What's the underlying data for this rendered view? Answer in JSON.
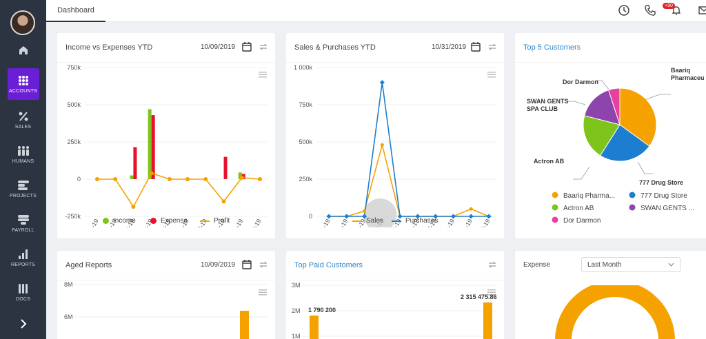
{
  "topbar": {
    "tab_label": "Dashboard",
    "notif_badge": "+90"
  },
  "sidebar": {
    "items": [
      {
        "label": "",
        "icon": "home-icon"
      },
      {
        "label": "ACCOUNTS",
        "icon": "grid-icon"
      },
      {
        "label": "SALES",
        "icon": "percent-icon"
      },
      {
        "label": "HUMANS",
        "icon": "people-icon"
      },
      {
        "label": "PROJECTS",
        "icon": "projects-icon"
      },
      {
        "label": "PAYROLL",
        "icon": "payroll-icon"
      },
      {
        "label": "REPORTS",
        "icon": "bar-chart-icon"
      },
      {
        "label": "DOCS",
        "icon": "docs-icon"
      }
    ],
    "expand_icon": "chevron-right-icon"
  },
  "cards": {
    "income": {
      "title": "Income vs Expenses YTD",
      "date": "10/09/2019",
      "legend": [
        "Income",
        "Expense",
        "Profit"
      ]
    },
    "sales": {
      "title": "Sales & Purchases YTD",
      "date": "10/31/2019",
      "legend": [
        "Sales",
        "Purchases"
      ]
    },
    "customers": {
      "title": "Top 5 Customers",
      "labels": {
        "a": "Baariq",
        "a2": "Pharmaceu",
        "b": "777 Drug Store",
        "c": "Actron AB",
        "d1": "SWAN GENTS",
        "d2": "SPA CLUB",
        "e": "Dor Darmon"
      },
      "legend": [
        "Baariq Pharma...",
        "777 Drug Store",
        "Actron AB",
        "SWAN GENTS ...",
        "Dor Darmon"
      ]
    },
    "aged": {
      "title": "Aged Reports",
      "date": "10/09/2019",
      "yticks": [
        "8M",
        "6M"
      ]
    },
    "toppaid": {
      "title": "Top Paid Customers",
      "yticks": [
        "3M",
        "2M",
        "1M"
      ],
      "label1": "1 790 200",
      "label2": "2 315 475.86"
    },
    "expense": {
      "label": "Expense",
      "select_value": "Last Month"
    }
  },
  "colors": {
    "income": "#7ec41b",
    "expense": "#e8112d",
    "profit": "#f5a200",
    "sales": "#f5a200",
    "purchases": "#1d7ed1",
    "c1": "#f5a200",
    "c2": "#1d7ed1",
    "c3": "#7ec41b",
    "c4": "#8e44ad",
    "c5": "#e9409e"
  },
  "chart_data": [
    {
      "type": "bar",
      "title": "Income vs Expenses YTD",
      "categories": [
        "Jan-19",
        "Feb-19",
        "Mar-19",
        "Apr-19",
        "May-19",
        "Jun-19",
        "Jul-19",
        "Aug-19",
        "Sep-19",
        "Oct-19"
      ],
      "yticks": [
        "750k",
        "500k",
        "250k",
        "0",
        "-250k"
      ],
      "ylim": [
        -250000,
        750000
      ],
      "series": [
        {
          "name": "Income",
          "values": [
            0,
            0,
            25000,
            470000,
            0,
            0,
            0,
            0,
            45000,
            0
          ]
        },
        {
          "name": "Expense",
          "values": [
            0,
            0,
            215000,
            430000,
            0,
            0,
            0,
            150000,
            35000,
            0
          ]
        },
        {
          "name": "Profit",
          "values": [
            0,
            0,
            -185000,
            40000,
            0,
            0,
            0,
            -150000,
            10000,
            0
          ]
        }
      ],
      "legend_position": "bottom"
    },
    {
      "type": "line",
      "title": "Sales & Purchases YTD",
      "categories": [
        "Jan-19",
        "Feb-19",
        "Mar-19",
        "Apr-19",
        "May-19",
        "Jun-19",
        "Jul-19",
        "Aug-19",
        "Sep-19",
        "Oct-19"
      ],
      "yticks": [
        "1 000k",
        "750k",
        "500k",
        "250k",
        "0"
      ],
      "ylim": [
        0,
        1000000
      ],
      "series": [
        {
          "name": "Sales",
          "values": [
            0,
            0,
            35000,
            480000,
            0,
            0,
            0,
            0,
            50000,
            0
          ]
        },
        {
          "name": "Purchases",
          "values": [
            0,
            0,
            0,
            900000,
            0,
            0,
            0,
            0,
            0,
            0
          ]
        }
      ],
      "legend_position": "bottom"
    },
    {
      "type": "pie",
      "title": "Top 5 Customers",
      "categories": [
        "Baariq Pharmaceu",
        "777 Drug Store",
        "Actron AB",
        "SWAN GENTS SPA CLUB",
        "Dor Darmon"
      ],
      "values": [
        35,
        24,
        20,
        16,
        5
      ],
      "legend_position": "bottom"
    }
  ]
}
